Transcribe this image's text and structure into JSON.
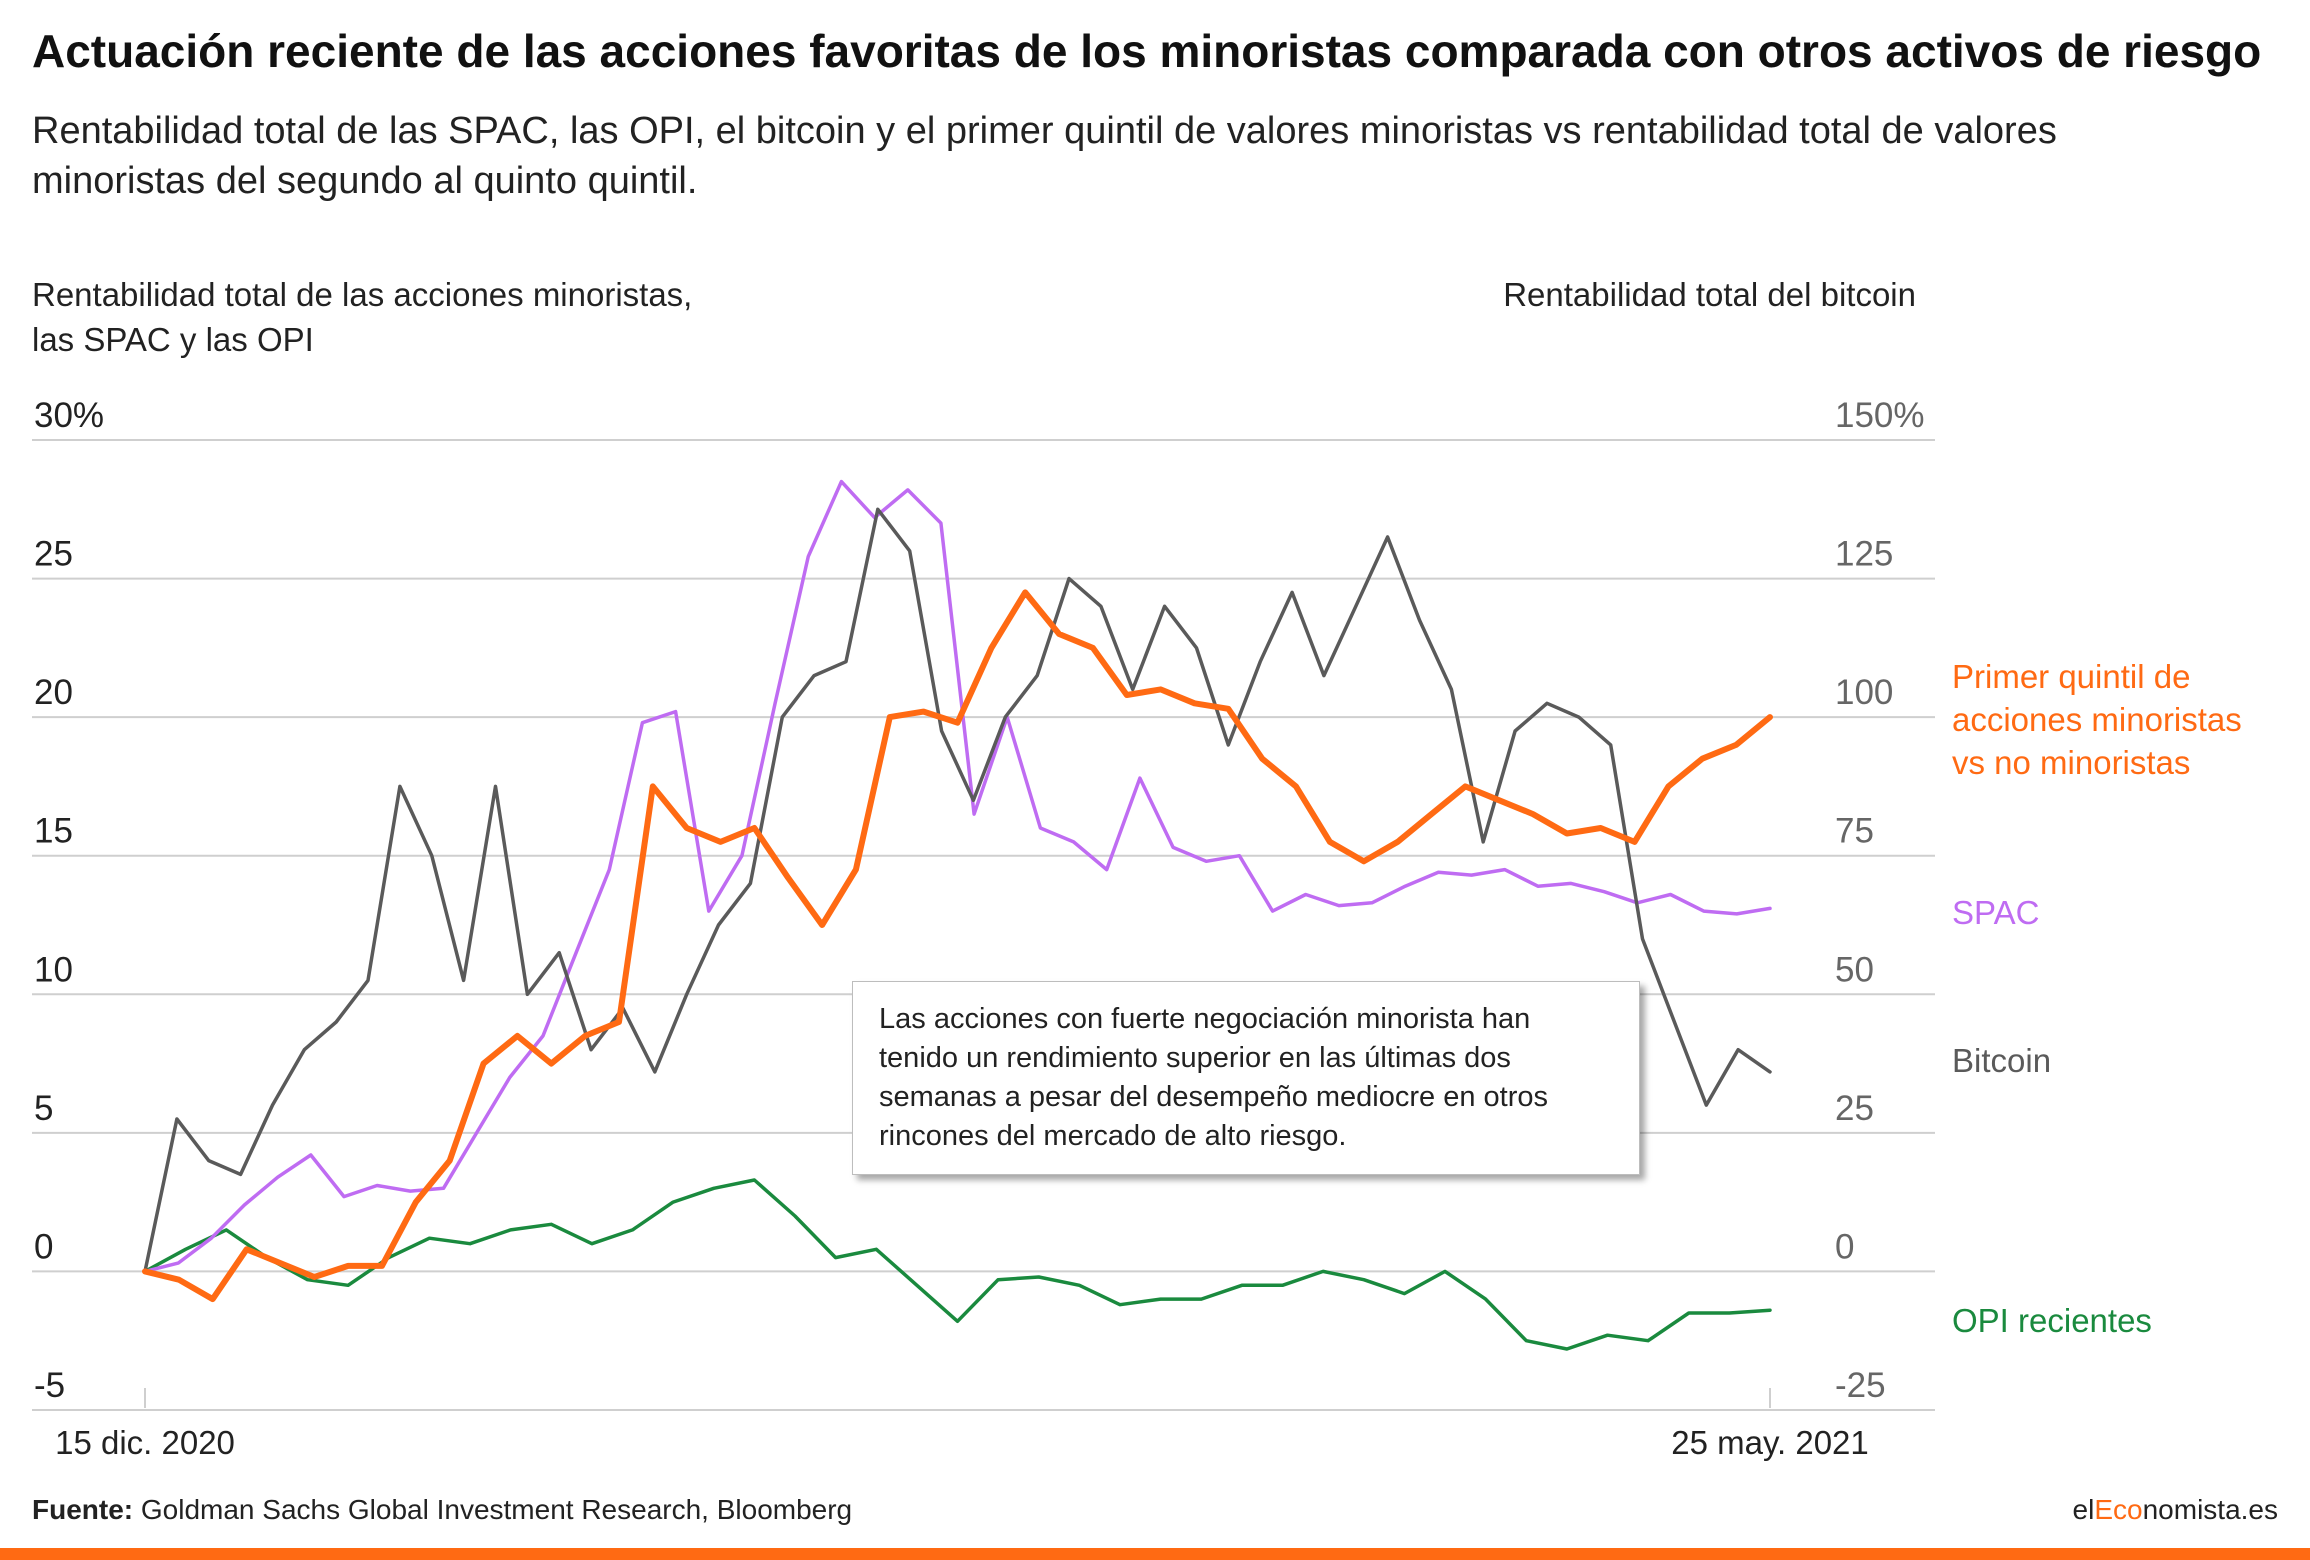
{
  "title": "Actuación reciente de las acciones favoritas de los minoristas comparada con otros activos de riesgo",
  "subtitle": "Rentabilidad total de las SPAC, las OPI, el bitcoin y el primer quintil de valores minoristas vs rentabilidad total de valores minoristas del segundo al quinto quintil.",
  "left_axis_title": "Rentabilidad total de las acciones minoristas, las SPAC y las OPI",
  "right_axis_title": "Rentabilidad total del bitcoin",
  "annotation": "Las acciones con fuerte negociación minorista han tenido un rendimiento superior en las últimas dos semanas a pesar del desempeño mediocre en otros rincones del mercado de alto riesgo.",
  "source_label": "Fuente:",
  "source_text": " Goldman Sachs Global Investment Research, Bloomberg",
  "brand": {
    "part1": "el",
    "part2": "Eco",
    "part3": "nomista.es"
  },
  "chart_data": {
    "type": "line",
    "x_start_label": "15 dic. 2020",
    "x_end_label": "25 may. 2021",
    "left_axis": {
      "ylim": [
        -5,
        30
      ],
      "ticks": [
        -5,
        0,
        5,
        10,
        15,
        20,
        25,
        30
      ],
      "tick_labels": [
        "-5",
        "0",
        "5",
        "10",
        "15",
        "20",
        "25",
        "30%"
      ]
    },
    "right_axis": {
      "ylim": [
        -25,
        150
      ],
      "ticks": [
        -25,
        0,
        25,
        50,
        75,
        100,
        125,
        150
      ],
      "tick_labels": [
        "-25",
        "0",
        "25",
        "50",
        "75",
        "100",
        "125",
        "150%"
      ]
    },
    "grid": true,
    "series": [
      {
        "name": "SPAC",
        "axis": "left",
        "color": "#bf6cf2",
        "values": [
          0.0,
          0.3,
          1.2,
          2.4,
          3.4,
          4.2,
          2.7,
          3.1,
          2.9,
          3.0,
          5.0,
          7.0,
          8.5,
          11.5,
          14.5,
          19.8,
          20.2,
          13.0,
          15.0,
          20.5,
          25.8,
          28.5,
          27.2,
          28.2,
          27.0,
          16.5,
          20.0,
          16.0,
          15.5,
          14.5,
          17.8,
          15.3,
          14.8,
          15.0,
          13.0,
          13.6,
          13.2,
          13.3,
          13.9,
          14.4,
          14.3,
          14.5,
          13.9,
          14.0,
          13.7,
          13.3,
          13.6,
          13.0,
          12.9,
          13.1
        ]
      },
      {
        "name": "Bitcoin",
        "axis": "left",
        "color": "#5a5a5a",
        "values": [
          0.0,
          5.5,
          4.0,
          3.5,
          6.0,
          8.0,
          9.0,
          10.5,
          17.5,
          15.0,
          10.5,
          17.5,
          10.0,
          11.5,
          8.0,
          9.5,
          7.2,
          10.0,
          12.5,
          14.0,
          20.0,
          21.5,
          22.0,
          27.5,
          26.0,
          19.5,
          17.0,
          20.0,
          21.5,
          25.0,
          24.0,
          21.0,
          24.0,
          22.5,
          19.0,
          22.0,
          24.5,
          21.5,
          24.0,
          26.5,
          23.5,
          21.0,
          15.5,
          19.5,
          20.5,
          20.0,
          19.0,
          12.0,
          9.0,
          6.0,
          8.0,
          7.2
        ]
      },
      {
        "name": "Primer quintil de acciones minoristas vs no minoristas",
        "axis": "left",
        "color": "#ff6a13",
        "values": [
          0.0,
          -0.3,
          -1.0,
          0.8,
          0.3,
          -0.2,
          0.2,
          0.2,
          2.5,
          4.0,
          7.5,
          8.5,
          7.5,
          8.5,
          9.0,
          17.5,
          16.0,
          15.5,
          16.0,
          14.2,
          12.5,
          14.5,
          20.0,
          20.2,
          19.8,
          22.5,
          24.5,
          23.0,
          22.5,
          20.8,
          21.0,
          20.5,
          20.3,
          18.5,
          17.5,
          15.5,
          14.8,
          15.5,
          16.5,
          17.5,
          17.0,
          16.5,
          15.8,
          16.0,
          15.5,
          17.5,
          18.5,
          19.0,
          20.0
        ]
      },
      {
        "name": "OPI recientes",
        "axis": "left",
        "color": "#1a8a3e",
        "values": [
          0.0,
          0.8,
          1.5,
          0.5,
          -0.3,
          -0.5,
          0.5,
          1.2,
          1.0,
          1.5,
          1.7,
          1.0,
          1.5,
          2.5,
          3.0,
          3.3,
          2.0,
          0.5,
          0.8,
          -0.5,
          -1.8,
          -0.3,
          -0.2,
          -0.5,
          -1.2,
          -1.0,
          -1.0,
          -0.5,
          -0.5,
          0.0,
          -0.3,
          -0.8,
          0.0,
          -1.0,
          -2.5,
          -2.8,
          -2.3,
          -2.5,
          -1.5,
          -1.5,
          -1.4
        ]
      }
    ],
    "series_labels": [
      {
        "text": "Primer quintil de acciones minoristas vs no minoristas",
        "color": "#ff6a13"
      },
      {
        "text": "SPAC",
        "color": "#bf6cf2"
      },
      {
        "text": "Bitcoin",
        "color": "#5a5a5a"
      },
      {
        "text": "OPI recientes",
        "color": "#1a8a3e"
      }
    ]
  }
}
